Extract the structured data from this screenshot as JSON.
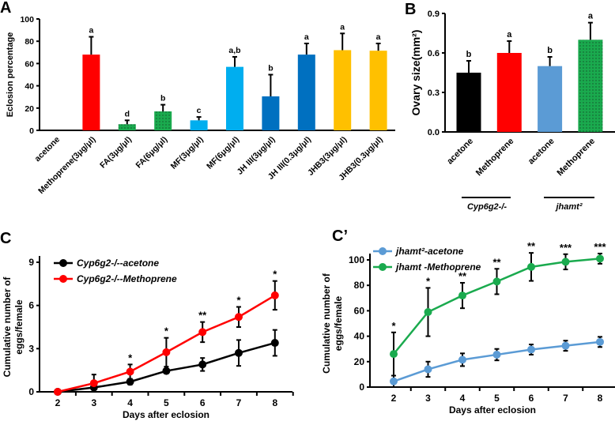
{
  "chart_data": [
    {
      "panel": "A",
      "type": "bar",
      "ylabel": "Eclosion percentage",
      "ylim": [
        0,
        100
      ],
      "yticks": [
        0,
        20,
        40,
        60,
        80,
        100
      ],
      "categories": [
        "acetone",
        "Methoprene(3μg/μl)",
        "FA(3μg/μl)",
        "FA(6μg/μl)",
        "MF(3μg/μl)",
        "MF(6μg/μl)",
        "JH III(3μg/μl)",
        "JH III(0.3μg/μl)",
        "JHB3(3μg/μl)",
        "JHB3(0.3μg/μl)"
      ],
      "values": [
        0,
        68,
        5.5,
        17,
        9,
        57,
        30.5,
        68,
        72,
        71.5
      ],
      "errors": [
        0,
        16,
        3.5,
        6,
        3,
        9,
        19.5,
        10,
        15,
        6.5
      ],
      "letters": [
        "",
        "a",
        "d",
        "b",
        "c",
        "a,b",
        "b",
        "a",
        "a",
        "a"
      ],
      "colors": [
        "#000000",
        "#ff0000",
        "#1a9c48",
        "#1a9c48",
        "#00aeef",
        "#00aeef",
        "#0070c0",
        "#0070c0",
        "#ffc000",
        "#ffc000"
      ],
      "dotted": [
        false,
        false,
        true,
        true,
        false,
        false,
        false,
        false,
        false,
        false
      ]
    },
    {
      "panel": "B",
      "type": "bar",
      "ylabel": "Ovary size(mm²)",
      "ylim": [
        0,
        0.9
      ],
      "yticks": [
        "0.0",
        "0.3",
        "0.6",
        "0.9"
      ],
      "categories": [
        "acetone",
        "Methoprene",
        "acetone",
        "Methoprene"
      ],
      "groups": [
        "Cyp6g2-/-",
        "jhamt²"
      ],
      "values": [
        0.45,
        0.6,
        0.5,
        0.7
      ],
      "errors": [
        0.09,
        0.09,
        0.07,
        0.13
      ],
      "letters": [
        "b",
        "a",
        "b",
        "a"
      ],
      "colors": [
        "#000000",
        "#ff0000",
        "#5b9bd5",
        "#00a84f"
      ],
      "dotted": [
        false,
        false,
        false,
        true
      ]
    },
    {
      "panel": "C",
      "type": "line",
      "xlabel": "Days after eclosion",
      "ylabel": "Cumulative number of eggs/female",
      "ylim": [
        0,
        9
      ],
      "yticks": [
        0,
        3,
        6,
        9
      ],
      "x": [
        2,
        3,
        4,
        5,
        6,
        7,
        8
      ],
      "legend_position": "top-left",
      "series": [
        {
          "name": "Cyp6g2-/--acetone",
          "color": "#000000",
          "values": [
            0,
            0.3,
            0.7,
            1.45,
            1.9,
            2.7,
            3.4
          ],
          "errors": [
            0,
            0.1,
            0.2,
            0.15,
            0.45,
            0.9,
            0.9
          ]
        },
        {
          "name": "Cyp6g2-/--Methoprene",
          "color": "#ff0000",
          "values": [
            0,
            0.6,
            1.4,
            2.75,
            4.15,
            5.2,
            6.7
          ],
          "errors": [
            0,
            0.6,
            0.5,
            1.0,
            0.7,
            0.7,
            1.0
          ]
        }
      ],
      "stars": [
        "",
        "",
        "*",
        "*",
        "**",
        "*",
        "*"
      ]
    },
    {
      "panel": "C’",
      "type": "line",
      "xlabel": "Days after eclosion",
      "ylabel": "Cumulative number of eggs/female",
      "ylim": [
        0,
        100
      ],
      "yticks": [
        0,
        20,
        40,
        60,
        80,
        100
      ],
      "x": [
        2,
        3,
        4,
        5,
        6,
        7,
        8
      ],
      "legend_position": "top-left",
      "series": [
        {
          "name": "jhamt²-acetone",
          "color": "#5b9bd5",
          "values": [
            4.5,
            14,
            21.5,
            25.5,
            29.5,
            32.5,
            35.5
          ],
          "errors": [
            4.5,
            6,
            5,
            4.5,
            4,
            4,
            4
          ]
        },
        {
          "name": "jhamt -Methoprene",
          "color": "#1aaa4e",
          "values": [
            26,
            59,
            72,
            83,
            94.5,
            98.5,
            101
          ],
          "errors": [
            17,
            19,
            10,
            10,
            11,
            6,
            4
          ]
        }
      ],
      "stars": [
        "*",
        "*",
        "**",
        "**",
        "**",
        "***",
        "***"
      ]
    }
  ]
}
